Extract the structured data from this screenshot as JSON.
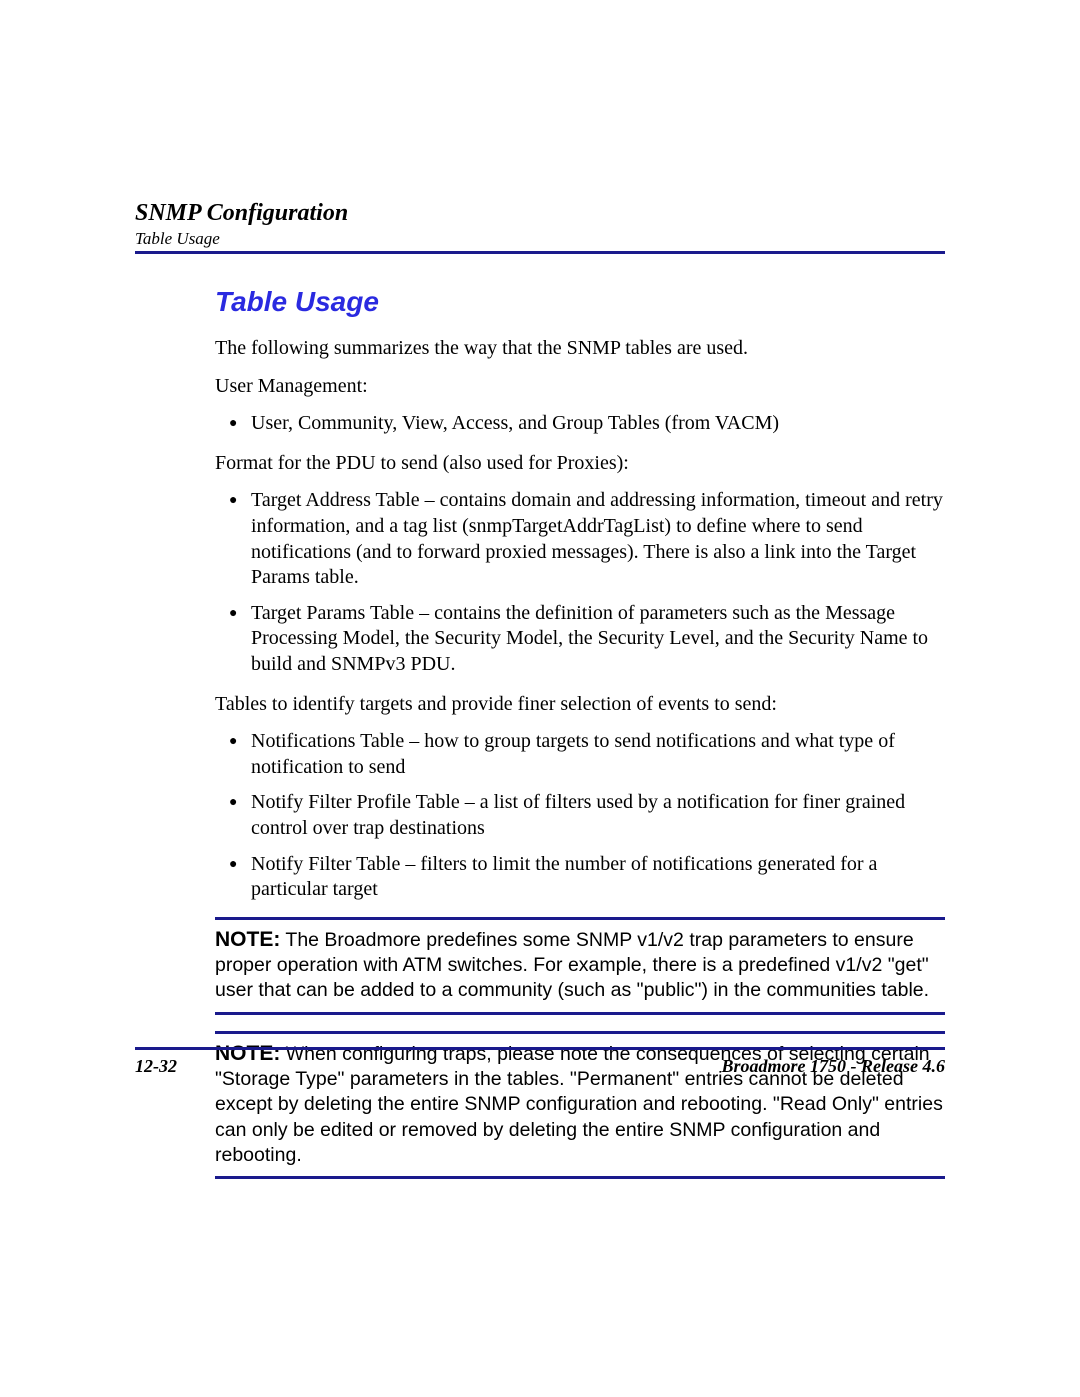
{
  "header": {
    "chapter": "SNMP Configuration",
    "subsection": "Table Usage"
  },
  "title": "Table Usage",
  "intro": "The following summarizes the way that the SNMP tables are used.",
  "userMgmtLabel": "User Management:",
  "userMgmtBullets": [
    "User, Community, View, Access, and Group Tables (from VACM)"
  ],
  "pduFormatLabel": "Format for the PDU to send (also used for Proxies):",
  "pduFormatBullets": [
    "Target Address Table – contains domain and addressing information, timeout and retry information, and a tag list (snmpTargetAddrTagList) to define where to send notifications (and to forward proxied messages). There is also a link into the Target Params table.",
    "Target Params Table – contains the definition of parameters such as the Message Processing Model, the Security Model, the Security Level, and the Security Name to build and SNMPv3 PDU."
  ],
  "targetsLabel": "Tables to identify targets and provide finer selection of events to send:",
  "targetsBullets": [
    "Notifications Table – how to group targets to send notifications and what type of notification to send",
    "Notify Filter Profile Table – a list of filters used by a notification for finer grained control over trap destinations",
    "Notify Filter Table – filters to limit the number of notifications generated for a particular target"
  ],
  "notes": {
    "label": "NOTE:",
    "note1": "The Broadmore predefines some SNMP v1/v2 trap parameters to ensure proper operation with ATM switches. For example, there is a predefined v1/v2 \"get\" user that can be added to a community (such as \"public\") in the communities table.",
    "note2": "When configuring traps, please note the consequences of selecting certain \"Storage Type\" parameters in the tables. \"Permanent\" entries cannot be deleted except by deleting the entire SNMP configuration and rebooting. \"Read Only\" entries can only be edited or removed by deleting the entire SNMP configuration and rebooting."
  },
  "footer": {
    "pageNumber": "12-32",
    "product": "Broadmore 1750 - Release 4.6"
  },
  "colors": {
    "rule": "#1a1a8c",
    "title": "#2a2ae0",
    "text": "#000000",
    "background": "#ffffff"
  }
}
